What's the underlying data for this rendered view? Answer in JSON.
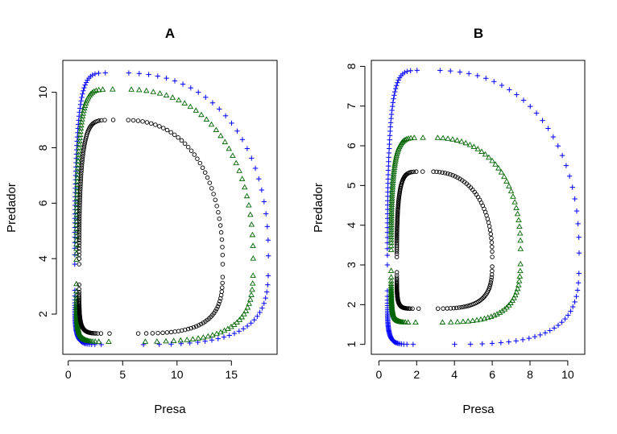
{
  "figure": {
    "panels": [
      {
        "title": "A",
        "xlabel": "Presa",
        "ylabel": "Predador",
        "x_ticks": [
          "0",
          "5",
          "10",
          "15"
        ],
        "y_ticks": [
          "2",
          "4",
          "6",
          "8",
          "10"
        ]
      },
      {
        "title": "B",
        "xlabel": "Presa",
        "ylabel": "Predador",
        "x_ticks": [
          "0",
          "2",
          "4",
          "6",
          "8",
          "10"
        ],
        "y_ticks": [
          "1",
          "2",
          "3",
          "4",
          "5",
          "6",
          "7",
          "8"
        ]
      }
    ]
  },
  "colors": {
    "blue": "#0000ff",
    "green": "#006400",
    "black": "#000000"
  },
  "chart_data": [
    {
      "type": "scatter",
      "title": "A",
      "xlabel": "Presa",
      "ylabel": "Predador",
      "xlim": [
        -0.5,
        19.2
      ],
      "ylim": [
        0.55,
        11.15
      ],
      "x_ticks": [
        0,
        5,
        10,
        15
      ],
      "y_ticks": [
        2,
        4,
        6,
        8,
        10
      ],
      "grid": false,
      "series": [
        {
          "marker": "plus",
          "color": "#0000ff",
          "orbit": {
            "x_min": 0.6,
            "x_max": 18.4,
            "y_min": 0.9,
            "y_max": 10.7,
            "x_at_y_max": 4.8,
            "x_at_y_min": 4.8,
            "y_at_x_min": 3.8,
            "y_at_x_max": 4.1
          }
        },
        {
          "marker": "triangle",
          "color": "#006400",
          "orbit": {
            "x_min": 0.75,
            "x_max": 17.0,
            "y_min": 1.0,
            "y_max": 10.1,
            "x_at_y_max": 5.0,
            "x_at_y_min": 5.0,
            "y_at_x_min": 3.8,
            "y_at_x_max": 4.0
          }
        },
        {
          "marker": "circle",
          "color": "#000000",
          "orbit": {
            "x_min": 1.0,
            "x_max": 14.2,
            "y_min": 1.3,
            "y_max": 9.0,
            "x_at_y_max": 5.0,
            "x_at_y_min": 5.0,
            "y_at_x_min": 3.8,
            "y_at_x_max": 3.8
          }
        }
      ]
    },
    {
      "type": "scatter",
      "title": "B",
      "xlabel": "Presa",
      "ylabel": "Predador",
      "xlim": [
        -0.4,
        10.9
      ],
      "ylim": [
        0.75,
        8.15
      ],
      "x_ticks": [
        0,
        2,
        4,
        6,
        8,
        10
      ],
      "y_ticks": [
        1,
        2,
        3,
        4,
        5,
        6,
        7,
        8
      ],
      "grid": false,
      "series": [
        {
          "marker": "plus",
          "color": "#0000ff",
          "orbit": {
            "x_min": 0.45,
            "x_max": 10.6,
            "y_min": 1.0,
            "y_max": 7.9,
            "x_at_y_max": 2.8,
            "x_at_y_min": 2.8,
            "y_at_x_min": 3.0,
            "y_at_x_max": 3.3
          }
        },
        {
          "marker": "triangle",
          "color": "#006400",
          "orbit": {
            "x_min": 0.65,
            "x_max": 7.5,
            "y_min": 1.55,
            "y_max": 6.2,
            "x_at_y_max": 2.8,
            "x_at_y_min": 2.5,
            "y_at_x_min": 3.3,
            "y_at_x_max": 3.4
          }
        },
        {
          "marker": "circle",
          "color": "#000000",
          "orbit": {
            "x_min": 0.95,
            "x_max": 6.0,
            "y_min": 1.9,
            "y_max": 5.35,
            "x_at_y_max": 2.7,
            "x_at_y_min": 2.6,
            "y_at_x_min": 3.2,
            "y_at_x_max": 3.2
          }
        }
      ]
    }
  ]
}
